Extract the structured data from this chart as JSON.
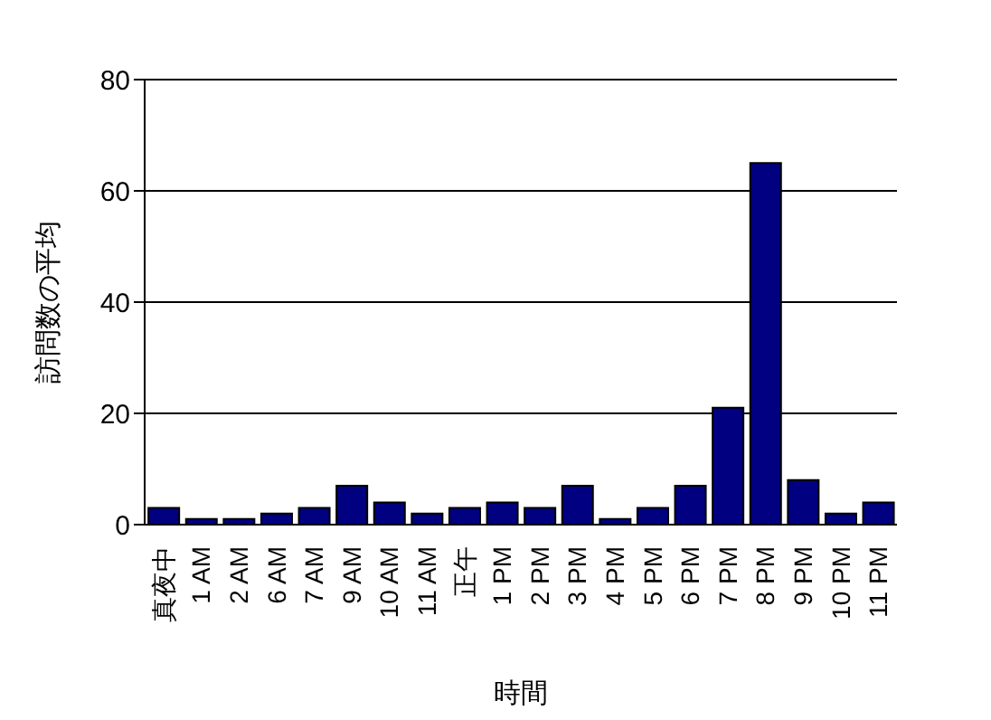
{
  "chart_data": {
    "type": "bar",
    "xlabel": "時間",
    "ylabel": "訪問数の平均",
    "categories": [
      "真夜中",
      "1 AM",
      "2 AM",
      "6 AM",
      "7 AM",
      "9 AM",
      "10 AM",
      "11 AM",
      "正午",
      "1 PM",
      "2 PM",
      "3 PM",
      "4 PM",
      "5 PM",
      "6 PM",
      "7 PM",
      "8 PM",
      "9 PM",
      "10 PM",
      "11 PM"
    ],
    "values": [
      3,
      1,
      1,
      2,
      3,
      7,
      4,
      2,
      3,
      4,
      3,
      7,
      1,
      3,
      7,
      21,
      65,
      8,
      2,
      4
    ],
    "color": "#000080",
    "ylim": [
      0,
      80
    ],
    "yticks": [
      0,
      20,
      40,
      60,
      80
    ],
    "grid": "y"
  }
}
